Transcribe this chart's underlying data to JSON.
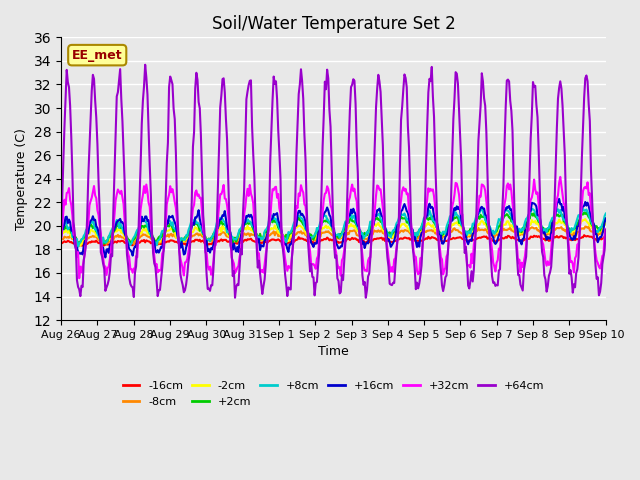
{
  "title": "Soil/Water Temperature Set 2",
  "xlabel": "Time",
  "ylabel": "Temperature (C)",
  "ylim": [
    12,
    36
  ],
  "yticks": [
    12,
    14,
    16,
    18,
    20,
    22,
    24,
    26,
    28,
    30,
    32,
    34,
    36
  ],
  "bg_color": "#e8e8e8",
  "plot_bg_color": "#e8e8e8",
  "legend_label": "EE_met",
  "series": [
    {
      "label": "-16cm",
      "color": "#ff0000",
      "lw": 1.5
    },
    {
      "label": "-8cm",
      "color": "#ff8800",
      "lw": 1.5
    },
    {
      "label": "-2cm",
      "color": "#ffff00",
      "lw": 1.5
    },
    {
      "label": "+2cm",
      "color": "#00cc00",
      "lw": 1.5
    },
    {
      "label": "+8cm",
      "color": "#00cccc",
      "lw": 1.5
    },
    {
      "label": "+16cm",
      "color": "#0000cc",
      "lw": 1.5
    },
    {
      "label": "+32cm",
      "color": "#ff00ff",
      "lw": 1.5
    },
    {
      "label": "+64cm",
      "color": "#9900cc",
      "lw": 1.5
    }
  ],
  "xtick_labels": [
    "Aug 26",
    "Aug 27",
    "Aug 28",
    "Aug 29",
    "Aug 30",
    "Aug 31",
    "Sep 1",
    "Sep 2",
    "Sep 3",
    "Sep 4",
    "Sep 5",
    "Sep 6",
    "Sep 7",
    "Sep 8",
    "Sep 9",
    "Sep 10"
  ],
  "num_points": 480
}
